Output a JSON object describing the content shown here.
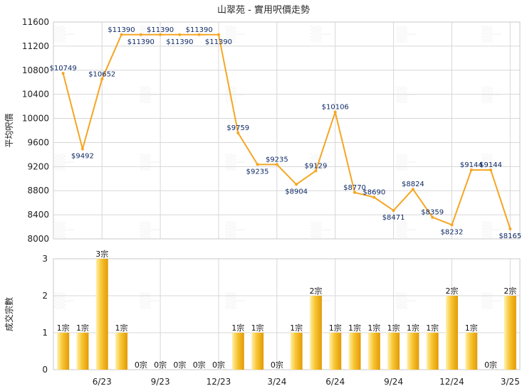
{
  "title": "山翠苑 - 實用呎價走勢",
  "colors": {
    "line": "#f5a623",
    "bar_light": "#fff1b0",
    "bar_mid": "#f7c531",
    "bar_dark": "#e39a07",
    "point_label": "#0f2a66"
  },
  "chart_data": [
    {
      "type": "line",
      "title": "山翠苑 - 實用呎價走勢",
      "ylabel": "平均呎價",
      "ylim": [
        8000,
        11600
      ],
      "yticks": [
        8000,
        8400,
        8800,
        9200,
        9600,
        10000,
        10400,
        10800,
        11200,
        11600
      ],
      "xticks": [
        "6/23",
        "9/23",
        "12/23",
        "3/24",
        "6/24",
        "9/24",
        "12/24",
        "3/25"
      ],
      "grid": true,
      "series": [
        {
          "values": [
            10749,
            9492,
            10652,
            11390,
            11390,
            11390,
            11390,
            11390,
            11390,
            9759,
            9235,
            9235,
            8904,
            9129,
            10106,
            8770,
            8690,
            8471,
            8824,
            8359,
            8232,
            9144,
            9144,
            8165
          ],
          "labels": [
            "$10749",
            "$9492",
            "$10652",
            "$11390",
            "$11390",
            "$11390",
            "$11390",
            "$11390",
            "$11390",
            "$9759",
            "$9235",
            "$9235",
            "$8904",
            "$9129",
            "$10106",
            "$8770",
            "$8690",
            "$8471",
            "$8824",
            "$8359",
            "$8232",
            "$9144",
            "$9144",
            "$8165"
          ]
        }
      ]
    },
    {
      "type": "bar",
      "ylabel": "成交宗數",
      "ylim": [
        0,
        3
      ],
      "yticks": [
        0,
        1,
        2,
        3
      ],
      "xticks": [
        "6/23",
        "9/23",
        "12/23",
        "3/24",
        "6/24",
        "9/24",
        "12/24",
        "3/25"
      ],
      "grid": true,
      "values": [
        1,
        1,
        3,
        1,
        0,
        0,
        0,
        0,
        0,
        1,
        1,
        0,
        1,
        2,
        1,
        1,
        1,
        1,
        1,
        1,
        2,
        1,
        0,
        2
      ],
      "labels": [
        "1宗",
        "1宗",
        "3宗",
        "1宗",
        "0宗",
        "0宗",
        "0宗",
        "0宗",
        "0宗",
        "1宗",
        "1宗",
        "0宗",
        "1宗",
        "2宗",
        "1宗",
        "1宗",
        "1宗",
        "1宗",
        "1宗",
        "1宗",
        "2宗",
        "1宗",
        "0宗",
        "2宗"
      ]
    }
  ]
}
